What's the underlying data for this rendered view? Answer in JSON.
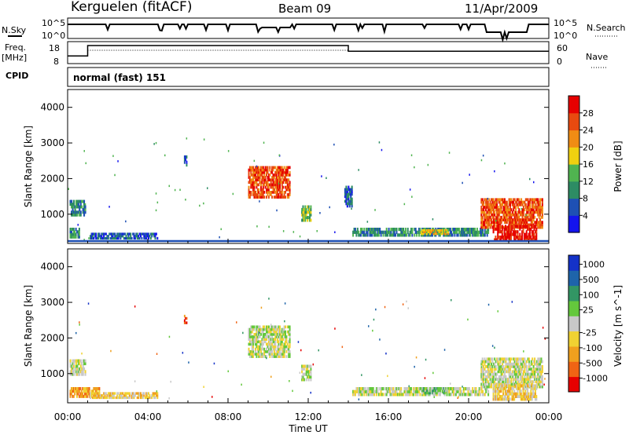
{
  "header": {
    "station": "Kerguelen (fitACF)",
    "beam": "Beam 09",
    "date": "11/Apr/2009"
  },
  "top_panels": {
    "nsky_label": "N.Sky",
    "nsearch_label": "N.Search",
    "noise_ticks_left": [
      "10^5",
      "10^0"
    ],
    "noise_ticks_right": [
      "10^5",
      "10^0"
    ],
    "freq_label": "Freq.",
    "freq_unit": "[MHz]",
    "freq_ticks": [
      "18",
      "8"
    ],
    "nave_label": "Nave",
    "nave_ticks": [
      "60",
      "0"
    ],
    "cpid_label": "CPID",
    "cpid_text": "normal (fast) 151",
    "freq_steps": [
      {
        "t": 0.0,
        "v": 11.5
      },
      {
        "t": 1.0,
        "v": 16.2
      },
      {
        "t": 14.0,
        "v": 13.6
      },
      {
        "t": 24.0,
        "v": 13.6
      }
    ]
  },
  "chart_data": [
    {
      "type": "heatmap",
      "title": "Power",
      "ylabel": "Slant Range [km]",
      "xlabel": "",
      "xlim": [
        0,
        24
      ],
      "ylim": [
        180,
        4500
      ],
      "yticks": [
        "1000",
        "2000",
        "3000",
        "4000"
      ],
      "colorbar": {
        "label": "Power [dB]",
        "ticks": [
          "4",
          "8",
          "12",
          "16",
          "20",
          "24",
          "28"
        ],
        "colors": [
          "#1414ee",
          "#1e50b4",
          "#2d8c64",
          "#50b450",
          "#f0d010",
          "#f08c14",
          "#e84a10",
          "#e60000"
        ]
      },
      "regions": [
        {
          "t0": 0.1,
          "t1": 0.9,
          "r0": 950,
          "r1": 1400,
          "level": 2
        },
        {
          "t0": 0.1,
          "t1": 0.6,
          "r0": 330,
          "r1": 620,
          "level": 2
        },
        {
          "t0": 1.1,
          "t1": 4.5,
          "r0": 300,
          "r1": 480,
          "level": 1
        },
        {
          "t0": 5.8,
          "t1": 5.95,
          "r0": 2350,
          "r1": 2650,
          "level": 1
        },
        {
          "t0": 9.0,
          "t1": 11.1,
          "r0": 1450,
          "r1": 2350,
          "level": 6
        },
        {
          "t0": 11.65,
          "t1": 12.15,
          "r0": 800,
          "r1": 1250,
          "level": 3
        },
        {
          "t0": 13.8,
          "t1": 14.2,
          "r0": 1200,
          "r1": 1800,
          "level": 1
        },
        {
          "t0": 14.2,
          "t1": 21.0,
          "r0": 380,
          "r1": 620,
          "level": 2
        },
        {
          "t0": 17.6,
          "t1": 19.0,
          "r0": 430,
          "r1": 580,
          "level": 4
        },
        {
          "t0": 20.6,
          "t1": 23.7,
          "r0": 600,
          "r1": 1450,
          "level": 6
        },
        {
          "t0": 21.2,
          "t1": 23.4,
          "r0": 250,
          "r1": 700,
          "level": 7
        }
      ]
    },
    {
      "type": "heatmap",
      "title": "Velocity",
      "ylabel": "Slant Range [km]",
      "xlabel": "Time UT",
      "xlim": [
        0,
        24
      ],
      "ylim": [
        180,
        4500
      ],
      "xticks": [
        "00:00",
        "04:00",
        "08:00",
        "12:00",
        "16:00",
        "20:00",
        "00:00"
      ],
      "yticks": [
        "1000",
        "2000",
        "3000",
        "4000"
      ],
      "colorbar": {
        "label": "Velocity [m s^-1]",
        "ticks": [
          "1000",
          "500",
          "100",
          "25",
          "-25",
          "-100",
          "-500",
          "-1000"
        ],
        "colors": [
          "#1432c8",
          "#1e64aa",
          "#329664",
          "#64c83c",
          "#c8c8c8",
          "#f0d232",
          "#f0a01e",
          "#f06414",
          "#e60000"
        ]
      },
      "regions": [
        {
          "t0": 0.1,
          "t1": 0.9,
          "r0": 950,
          "r1": 1400,
          "level": 4
        },
        {
          "t0": 0.1,
          "t1": 1.6,
          "r0": 330,
          "r1": 620,
          "level": 6
        },
        {
          "t0": 1.1,
          "t1": 4.5,
          "r0": 300,
          "r1": 480,
          "level": 5
        },
        {
          "t0": 5.8,
          "t1": 5.95,
          "r0": 2400,
          "r1": 2650,
          "level": 7
        },
        {
          "t0": 9.0,
          "t1": 11.1,
          "r0": 1450,
          "r1": 2350,
          "level": 4
        },
        {
          "t0": 11.65,
          "t1": 12.15,
          "r0": 800,
          "r1": 1250,
          "level": 4
        },
        {
          "t0": 14.2,
          "t1": 21.0,
          "r0": 380,
          "r1": 620,
          "level": 4
        },
        {
          "t0": 17.6,
          "t1": 19.0,
          "r0": 430,
          "r1": 620,
          "level": 3
        },
        {
          "t0": 20.6,
          "t1": 23.7,
          "r0": 600,
          "r1": 1450,
          "level": 4
        },
        {
          "t0": 21.2,
          "t1": 23.4,
          "r0": 250,
          "r1": 700,
          "level": 5
        }
      ]
    }
  ]
}
